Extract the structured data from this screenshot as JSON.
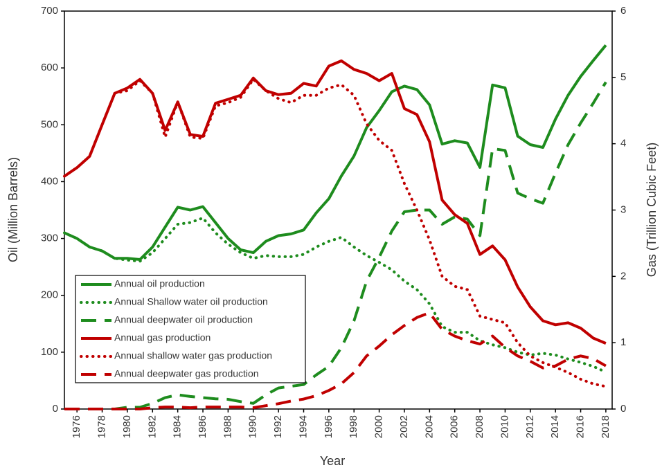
{
  "chart_data": {
    "type": "line",
    "x_label": "Year",
    "y_label": "Oil (Million Barrels)",
    "y2_label": "Gas (Trillion Cubic Feet)",
    "x": [
      1975,
      1976,
      1977,
      1978,
      1979,
      1980,
      1981,
      1982,
      1983,
      1984,
      1985,
      1986,
      1987,
      1988,
      1989,
      1990,
      1991,
      1992,
      1993,
      1994,
      1995,
      1996,
      1997,
      1998,
      1999,
      2000,
      2001,
      2002,
      2003,
      2004,
      2005,
      2006,
      2007,
      2008,
      2009,
      2010,
      2011,
      2012,
      2013,
      2014,
      2015,
      2016,
      2017,
      2018
    ],
    "xlim": [
      1975,
      2018.5
    ],
    "xticks": [
      1976,
      1978,
      1980,
      1982,
      1984,
      1986,
      1988,
      1990,
      1992,
      1994,
      1996,
      1998,
      2000,
      2002,
      2004,
      2006,
      2008,
      2010,
      2012,
      2014,
      2016,
      2018
    ],
    "ylim": [
      0,
      700
    ],
    "yticks": [
      0,
      100,
      200,
      300,
      400,
      500,
      600,
      700
    ],
    "y2lim": [
      0,
      6
    ],
    "y2ticks": [
      0,
      1,
      2,
      3,
      4,
      5,
      6
    ],
    "grid": false,
    "legend": "lower left",
    "series": [
      {
        "name": "Annual oil production",
        "color": "#1e8c1e",
        "style": "solid",
        "axis": "y",
        "values": [
          310,
          300,
          285,
          278,
          265,
          265,
          263,
          285,
          320,
          355,
          350,
          356,
          328,
          300,
          280,
          275,
          295,
          305,
          308,
          315,
          345,
          370,
          410,
          445,
          495,
          525,
          558,
          568,
          562,
          535,
          466,
          472,
          468,
          425,
          570,
          565,
          480,
          465,
          460,
          510,
          552,
          585,
          613,
          640
        ]
      },
      {
        "name": "Annual Shallow water oil production",
        "color": "#1e8c1e",
        "style": "dotted",
        "axis": "y",
        "values": [
          310,
          300,
          285,
          278,
          265,
          262,
          260,
          275,
          300,
          325,
          328,
          336,
          310,
          290,
          275,
          265,
          270,
          268,
          268,
          272,
          285,
          295,
          302,
          285,
          270,
          258,
          245,
          225,
          210,
          185,
          145,
          135,
          135,
          120,
          113,
          108,
          100,
          95,
          98,
          95,
          88,
          82,
          75,
          65
        ]
      },
      {
        "name": "Annual deepwater oil production",
        "color": "#1e8c1e",
        "style": "dashed",
        "axis": "y",
        "values": [
          0,
          0,
          0,
          0,
          0,
          3,
          3,
          10,
          20,
          25,
          22,
          20,
          18,
          17,
          13,
          10,
          25,
          37,
          40,
          43,
          60,
          75,
          108,
          155,
          225,
          267,
          313,
          347,
          350,
          350,
          325,
          338,
          334,
          305,
          458,
          455,
          380,
          370,
          362,
          415,
          465,
          503,
          538,
          575
        ]
      },
      {
        "name": "Annual gas production",
        "color": "#c00000",
        "style": "solid",
        "axis": "y2",
        "values": [
          3.51,
          3.64,
          3.81,
          4.29,
          4.76,
          4.84,
          4.97,
          4.76,
          4.2,
          4.63,
          4.14,
          4.11,
          4.61,
          4.67,
          4.73,
          4.99,
          4.8,
          4.74,
          4.76,
          4.91,
          4.87,
          5.17,
          5.25,
          5.12,
          5.06,
          4.95,
          5.06,
          4.53,
          4.44,
          4.03,
          3.15,
          2.93,
          2.8,
          2.33,
          2.46,
          2.25,
          1.84,
          1.54,
          1.33,
          1.27,
          1.3,
          1.22,
          1.07,
          0.99
        ]
      },
      {
        "name": "Annual shallow water gas production",
        "color": "#c00000",
        "style": "dotted",
        "axis": "y2",
        "values": [
          3.51,
          3.64,
          3.81,
          4.29,
          4.76,
          4.8,
          4.95,
          4.76,
          4.1,
          4.63,
          4.1,
          4.08,
          4.57,
          4.62,
          4.7,
          4.97,
          4.8,
          4.68,
          4.62,
          4.73,
          4.73,
          4.84,
          4.89,
          4.73,
          4.3,
          4.05,
          3.9,
          3.4,
          3.0,
          2.55,
          2.0,
          1.85,
          1.8,
          1.4,
          1.35,
          1.3,
          1.0,
          0.8,
          0.7,
          0.63,
          0.55,
          0.45,
          0.38,
          0.34
        ]
      },
      {
        "name": "Annual deepwater gas production",
        "color": "#c00000",
        "style": "dashed",
        "axis": "y2",
        "values": [
          0,
          0,
          0,
          0,
          0,
          0,
          0,
          0.02,
          0.03,
          0.03,
          0.02,
          0.03,
          0.03,
          0.03,
          0.03,
          0.02,
          0.05,
          0.08,
          0.12,
          0.15,
          0.2,
          0.28,
          0.38,
          0.55,
          0.8,
          0.95,
          1.12,
          1.26,
          1.38,
          1.45,
          1.2,
          1.1,
          1.03,
          0.98,
          1.1,
          0.93,
          0.8,
          0.72,
          0.62,
          0.65,
          0.75,
          0.8,
          0.76,
          0.65
        ]
      }
    ]
  }
}
